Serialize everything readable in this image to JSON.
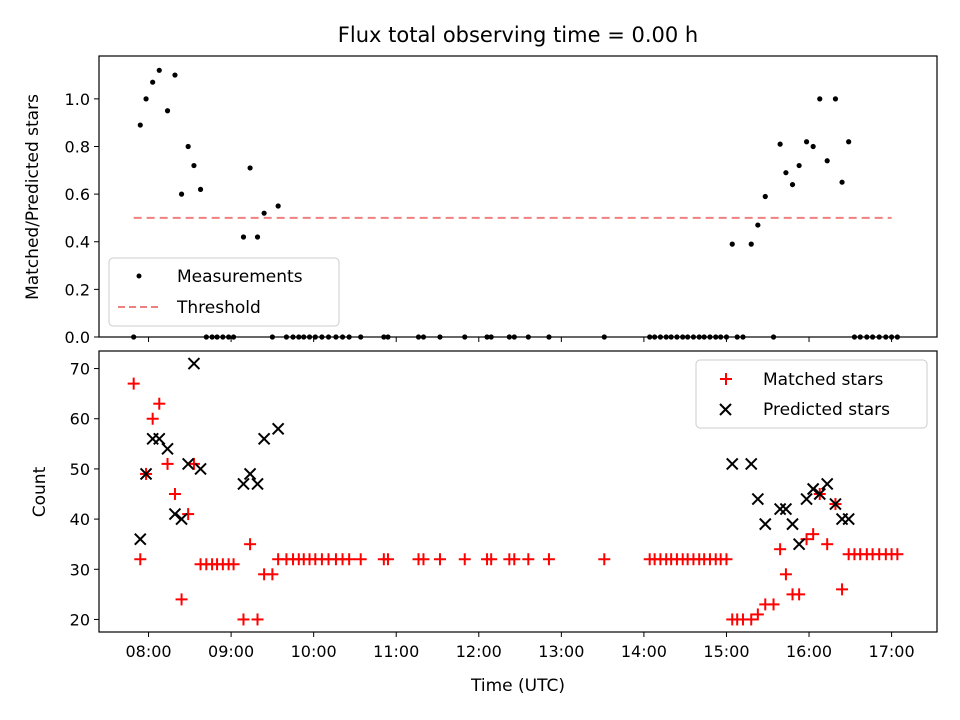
{
  "chart_data": [
    {
      "type": "scatter",
      "title": "Flux total observing time = 0.00 h",
      "xlabel": "",
      "ylabel": "Matched/Predicted stars",
      "xlim": [
        7.4,
        17.55
      ],
      "ylim": [
        0,
        1.18
      ],
      "yticks": [
        0.0,
        0.2,
        0.4,
        0.6,
        0.8,
        1.0
      ],
      "ytick_labels": [
        "0.0",
        "0.2",
        "0.4",
        "0.6",
        "0.8",
        "1.0"
      ],
      "legend_position": "lower-left",
      "series": [
        {
          "name": "Measurements",
          "marker": "dot",
          "color": "#000000",
          "x": [
            7.82,
            7.9,
            7.97,
            8.05,
            8.13,
            8.23,
            8.32,
            8.4,
            8.48,
            8.55,
            8.63,
            8.7,
            8.77,
            8.83,
            8.9,
            8.97,
            9.03,
            9.15,
            9.23,
            9.32,
            9.4,
            9.5,
            9.57,
            9.67,
            9.75,
            9.82,
            9.88,
            9.95,
            10.02,
            10.1,
            10.18,
            10.27,
            10.35,
            10.43,
            10.57,
            10.85,
            10.9,
            11.27,
            11.33,
            11.53,
            11.83,
            12.1,
            12.15,
            12.37,
            12.43,
            12.6,
            12.85,
            13.52,
            14.07,
            14.13,
            14.2,
            14.27,
            14.33,
            14.4,
            14.47,
            14.53,
            14.6,
            14.67,
            14.73,
            14.8,
            14.87,
            14.93,
            15.0,
            15.07,
            15.13,
            15.2,
            15.3,
            15.38,
            15.47,
            15.57,
            15.65,
            15.72,
            15.8,
            15.88,
            15.97,
            16.05,
            16.13,
            16.22,
            16.32,
            16.4,
            16.48,
            16.55,
            16.62,
            16.7,
            16.77,
            16.85,
            16.93,
            17.0,
            17.07
          ],
          "y": [
            0.0,
            0.89,
            1.0,
            1.07,
            1.12,
            0.95,
            1.1,
            0.6,
            0.8,
            0.72,
            0.62,
            0.0,
            0.0,
            0.0,
            0.0,
            0.0,
            0.0,
            0.42,
            0.71,
            0.42,
            0.52,
            0.0,
            0.55,
            0.0,
            0.0,
            0.0,
            0.0,
            0.0,
            0.0,
            0.0,
            0.0,
            0.0,
            0.0,
            0.0,
            0.0,
            0.0,
            0.0,
            0.0,
            0.0,
            0.0,
            0.0,
            0.0,
            0.0,
            0.0,
            0.0,
            0.0,
            0.0,
            0.0,
            0.0,
            0.0,
            0.0,
            0.0,
            0.0,
            0.0,
            0.0,
            0.0,
            0.0,
            0.0,
            0.0,
            0.0,
            0.0,
            0.0,
            0.0,
            0.39,
            0.0,
            0.0,
            0.39,
            0.47,
            0.59,
            0.0,
            0.81,
            0.69,
            0.64,
            0.72,
            0.82,
            0.8,
            1.0,
            0.74,
            1.0,
            0.65,
            0.82,
            0.0,
            0.0,
            0.0,
            0.0,
            0.0,
            0.0,
            0.0,
            0.0
          ]
        },
        {
          "name": "Threshold",
          "style": "dashed",
          "color": "#f08080",
          "x": [
            7.82,
            17.0
          ],
          "y": [
            0.5,
            0.5
          ]
        }
      ]
    },
    {
      "type": "scatter",
      "title": "",
      "xlabel": "Time (UTC)",
      "ylabel": "Count",
      "xlim": [
        7.4,
        17.55
      ],
      "ylim": [
        17.5,
        73.5
      ],
      "yticks": [
        20,
        30,
        40,
        50,
        60,
        70
      ],
      "ytick_labels": [
        "20",
        "30",
        "40",
        "50",
        "60",
        "70"
      ],
      "xticks": [
        8,
        9,
        10,
        11,
        12,
        13,
        14,
        15,
        16,
        17
      ],
      "xtick_labels": [
        "08:00",
        "09:00",
        "10:00",
        "11:00",
        "12:00",
        "13:00",
        "14:00",
        "15:00",
        "16:00",
        "17:00"
      ],
      "legend_position": "upper-right",
      "series": [
        {
          "name": "Matched stars",
          "marker": "plus",
          "color": "#ff0000",
          "x": [
            7.82,
            7.9,
            7.97,
            8.05,
            8.13,
            8.23,
            8.32,
            8.4,
            8.48,
            8.55,
            8.63,
            8.7,
            8.77,
            8.83,
            8.9,
            8.97,
            9.03,
            9.15,
            9.23,
            9.32,
            9.4,
            9.5,
            9.57,
            9.67,
            9.75,
            9.82,
            9.88,
            9.95,
            10.02,
            10.1,
            10.18,
            10.27,
            10.35,
            10.43,
            10.57,
            10.85,
            10.9,
            11.27,
            11.33,
            11.53,
            11.83,
            12.1,
            12.15,
            12.37,
            12.43,
            12.6,
            12.85,
            13.52,
            14.07,
            14.13,
            14.2,
            14.27,
            14.33,
            14.4,
            14.47,
            14.53,
            14.6,
            14.67,
            14.73,
            14.8,
            14.87,
            14.93,
            15.0,
            15.07,
            15.13,
            15.2,
            15.3,
            15.38,
            15.47,
            15.57,
            15.65,
            15.72,
            15.8,
            15.88,
            15.97,
            16.05,
            16.13,
            16.22,
            16.32,
            16.4,
            16.48,
            16.55,
            16.62,
            16.7,
            16.77,
            16.85,
            16.93,
            17.0,
            17.07
          ],
          "y": [
            67,
            32,
            49,
            60,
            63,
            51,
            45,
            24,
            41,
            51,
            31,
            31,
            31,
            31,
            31,
            31,
            31,
            20,
            35,
            20,
            29,
            29,
            32,
            32,
            32,
            32,
            32,
            32,
            32,
            32,
            32,
            32,
            32,
            32,
            32,
            32,
            32,
            32,
            32,
            32,
            32,
            32,
            32,
            32,
            32,
            32,
            32,
            32,
            32,
            32,
            32,
            32,
            32,
            32,
            32,
            32,
            32,
            32,
            32,
            32,
            32,
            32,
            32,
            20,
            20,
            20,
            20,
            21,
            23,
            23,
            34,
            29,
            25,
            25,
            36,
            37,
            45,
            35,
            43,
            26,
            33,
            33,
            33,
            33,
            33,
            33,
            33,
            33,
            33
          ]
        },
        {
          "name": "Predicted stars",
          "marker": "x",
          "color": "#000000",
          "x": [
            7.9,
            7.97,
            8.05,
            8.13,
            8.23,
            8.32,
            8.4,
            8.48,
            8.55,
            8.63,
            9.15,
            9.23,
            9.32,
            9.4,
            9.57,
            15.07,
            15.3,
            15.38,
            15.47,
            15.65,
            15.72,
            15.8,
            15.88,
            15.97,
            16.05,
            16.13,
            16.22,
            16.32,
            16.4,
            16.48
          ],
          "y": [
            36,
            49,
            56,
            56,
            54,
            41,
            40,
            51,
            71,
            50,
            47,
            49,
            47,
            56,
            58,
            51,
            51,
            44,
            39,
            42,
            42,
            39,
            35,
            44,
            46,
            45,
            47,
            43,
            40,
            40
          ]
        }
      ]
    }
  ]
}
